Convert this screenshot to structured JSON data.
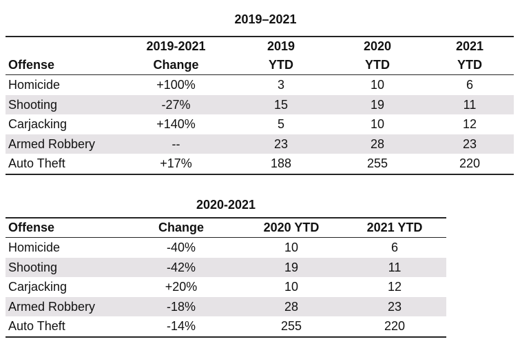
{
  "table1": {
    "title": "2019–2021",
    "headers": {
      "row1": [
        "",
        "2019-2021",
        "2019",
        "2020",
        "2021"
      ],
      "row2": [
        "Offense",
        "Change",
        "YTD",
        "YTD",
        "YTD"
      ]
    },
    "rows": [
      [
        "Homicide",
        "+100%",
        "3",
        "10",
        "6"
      ],
      [
        "Shooting",
        "-27%",
        "15",
        "19",
        "11"
      ],
      [
        "Carjacking",
        "+140%",
        "5",
        "10",
        "12"
      ],
      [
        "Armed Robbery",
        "--",
        "23",
        "28",
        "23"
      ],
      [
        "Auto Theft",
        "+17%",
        "188",
        "255",
        "220"
      ]
    ]
  },
  "table2": {
    "title": "2020-2021",
    "headers": [
      "Offense",
      "Change",
      "2020 YTD",
      "2021 YTD"
    ],
    "rows": [
      [
        "Homicide",
        "-40%",
        "10",
        "6"
      ],
      [
        "Shooting",
        "-42%",
        "19",
        "11"
      ],
      [
        "Carjacking",
        "+20%",
        "10",
        "12"
      ],
      [
        "Armed Robbery",
        "-18%",
        "28",
        "23"
      ],
      [
        "Auto Theft",
        "-14%",
        "255",
        "220"
      ]
    ]
  },
  "colors": {
    "shade": "#e6e3e6",
    "rule": "#222222"
  }
}
